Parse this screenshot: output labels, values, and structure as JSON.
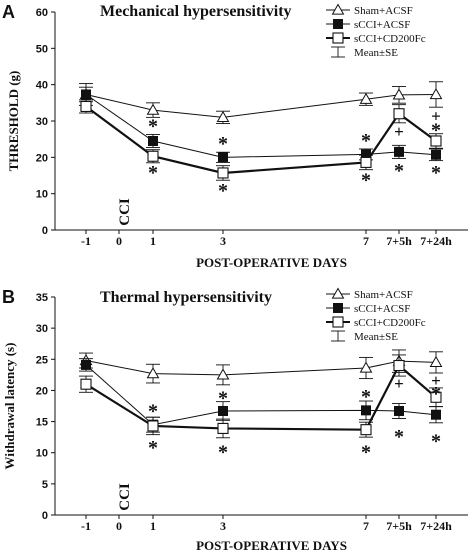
{
  "panels": [
    "A",
    "B"
  ],
  "chart_data": [
    {
      "panel": "A",
      "type": "line",
      "title": "Mechanical hypersensitivity",
      "xlabel": "POST-OPERATIVE DAYS",
      "ylabel": "THRESHOLD (g)",
      "ylim": [
        0,
        60
      ],
      "yticks": [
        0,
        10,
        20,
        30,
        40,
        50,
        60
      ],
      "categories": [
        "-1",
        "0",
        "1",
        "3",
        "7",
        "7+5h",
        "7+24h"
      ],
      "marker_label": "CCI",
      "legend_position": "top-right",
      "legend": [
        "Sham+ACSF",
        "sCCI+ACSF",
        "sCCI+CD200Fc",
        "Mean±SE"
      ],
      "series": [
        {
          "name": "Sham+ACSF",
          "marker": "open-triangle",
          "x": [
            "-1",
            "1",
            "3",
            "7",
            "7+5h",
            "7+24h"
          ],
          "values": [
            37.3,
            33.0,
            31.0,
            36.0,
            37.2,
            37.3
          ],
          "err": [
            3.0,
            2.0,
            1.7,
            1.7,
            2.3,
            3.5
          ]
        },
        {
          "name": "sCCI+ACSF",
          "marker": "filled-square",
          "x": [
            "-1",
            "1",
            "3",
            "7",
            "7+5h",
            "7+24h"
          ],
          "values": [
            37.3,
            24.5,
            20.0,
            20.8,
            21.5,
            20.7
          ],
          "err": [
            2.0,
            1.8,
            1.4,
            1.5,
            1.8,
            1.6
          ]
        },
        {
          "name": "sCCI+CD200Fc",
          "marker": "open-square",
          "x": [
            "-1",
            "1",
            "3",
            "7",
            "7+5h",
            "7+24h"
          ],
          "values": [
            34.0,
            20.3,
            15.7,
            18.6,
            32.0,
            24.5
          ],
          "err": [
            1.8,
            1.8,
            2.0,
            2.0,
            2.5,
            2.0
          ]
        }
      ],
      "annotations": [
        {
          "x": "1",
          "value": 29.3,
          "text": "*"
        },
        {
          "x": "1",
          "value": 16.5,
          "text": "*"
        },
        {
          "x": "3",
          "value": 24.5,
          "text": "*"
        },
        {
          "x": "3",
          "value": 11.5,
          "text": "*"
        },
        {
          "x": "7",
          "value": 25.3,
          "text": "*"
        },
        {
          "x": "7",
          "value": 14.5,
          "text": "*"
        },
        {
          "x": "7+5h",
          "value": 27.2,
          "text": "+"
        },
        {
          "x": "7+5h",
          "value": 17.0,
          "text": "*"
        },
        {
          "x": "7+24h",
          "value": 31.5,
          "text": "+"
        },
        {
          "x": "7+24h",
          "value": 28.2,
          "text": "*"
        },
        {
          "x": "7+24h",
          "value": 16.5,
          "text": "*"
        }
      ]
    },
    {
      "panel": "B",
      "type": "line",
      "title": "Thermal hypersensitivity",
      "xlabel": "POST-OPERATIVE DAYS",
      "ylabel": "Withdrawal latency (s)",
      "ylim": [
        0,
        35
      ],
      "yticks": [
        0,
        5,
        10,
        15,
        20,
        25,
        30,
        35
      ],
      "categories": [
        "-1",
        "0",
        "1",
        "3",
        "7",
        "7+5h",
        "7+24h"
      ],
      "marker_label": "CCI",
      "legend_position": "top-right",
      "legend": [
        "Sham+ACSF",
        "sCCI+ACSF",
        "sCCI+CD200Fc",
        "Mean±SE"
      ],
      "series": [
        {
          "name": "Sham+ACSF",
          "marker": "open-triangle",
          "x": [
            "-1",
            "1",
            "3",
            "7",
            "7+5h",
            "7+24h"
          ],
          "values": [
            24.8,
            22.7,
            22.5,
            23.6,
            24.7,
            24.5
          ],
          "err": [
            1.2,
            1.5,
            1.6,
            1.7,
            1.8,
            1.7
          ]
        },
        {
          "name": "sCCI+ACSF",
          "marker": "filled-square",
          "x": [
            "-1",
            "1",
            "3",
            "7",
            "7+5h",
            "7+24h"
          ],
          "values": [
            24.1,
            14.5,
            16.7,
            16.8,
            16.7,
            16.1
          ],
          "err": [
            1.0,
            1.2,
            1.5,
            1.5,
            1.2,
            1.3
          ]
        },
        {
          "name": "sCCI+CD200Fc",
          "marker": "open-square",
          "x": [
            "-1",
            "1",
            "3",
            "7",
            "7+5h",
            "7+24h"
          ],
          "values": [
            21.0,
            14.3,
            13.9,
            13.7,
            24.0,
            18.9
          ],
          "err": [
            1.3,
            1.4,
            1.5,
            1.2,
            1.7,
            1.5
          ]
        }
      ],
      "annotations": [
        {
          "x": "1",
          "value": 17.1,
          "text": "*"
        },
        {
          "x": "1",
          "value": 11.2,
          "text": "*"
        },
        {
          "x": "3",
          "value": 19.2,
          "text": "*"
        },
        {
          "x": "3",
          "value": 10.5,
          "text": "*"
        },
        {
          "x": "7",
          "value": 19.4,
          "text": "*"
        },
        {
          "x": "7",
          "value": 10.5,
          "text": "*"
        },
        {
          "x": "7+5h",
          "value": 21.2,
          "text": "+"
        },
        {
          "x": "7+5h",
          "value": 13.0,
          "text": "*"
        },
        {
          "x": "7+24h",
          "value": 21.7,
          "text": "+"
        },
        {
          "x": "7+24h",
          "value": 19.9,
          "text": "*"
        },
        {
          "x": "7+24h",
          "value": 12.3,
          "text": "*"
        }
      ]
    }
  ]
}
